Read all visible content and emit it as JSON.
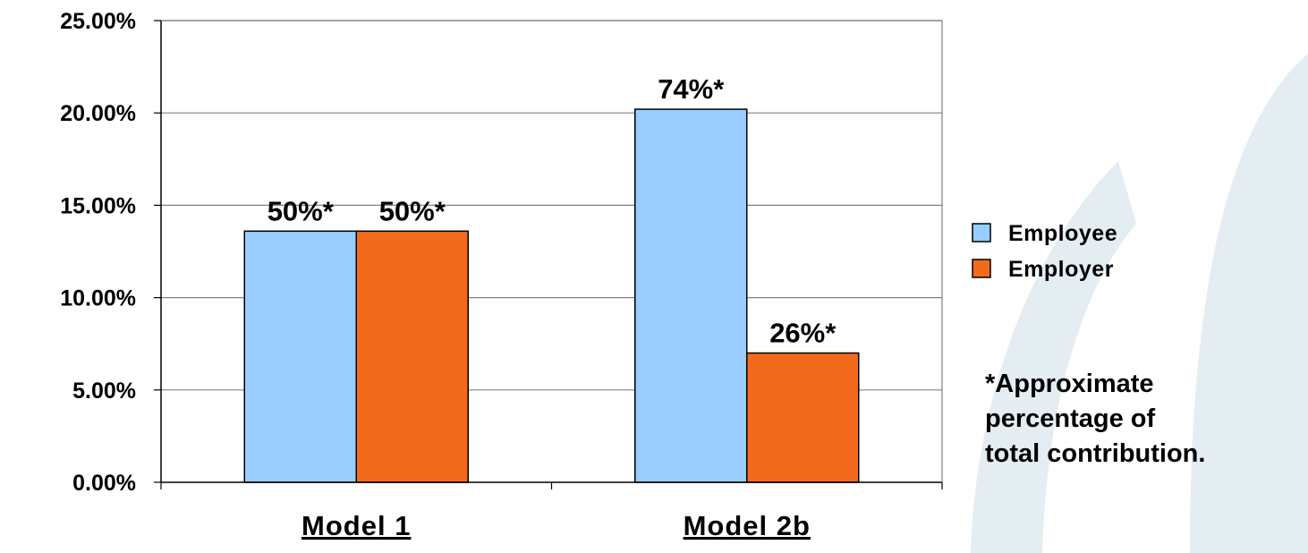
{
  "chart_data": {
    "type": "bar",
    "categories": [
      "Model 1",
      "Model 2b"
    ],
    "series": [
      {
        "name": "Employee",
        "values": [
          13.6,
          20.2
        ],
        "color": "#99CCFF"
      },
      {
        "name": "Employer",
        "values": [
          13.6,
          7.0
        ],
        "color": "#F26B1D"
      }
    ],
    "data_labels": [
      [
        "50%*",
        "74%*"
      ],
      [
        "50%*",
        "26%*"
      ]
    ],
    "ylim": [
      0,
      25
    ],
    "yticks": [
      0,
      5,
      10,
      15,
      20,
      25
    ],
    "ytick_labels": [
      "0.00%",
      "5.00%",
      "10.00%",
      "15.00%",
      "20.00%",
      "25.00%"
    ],
    "grid": true,
    "legend_position": "right",
    "title": "",
    "xlabel": "",
    "ylabel": ""
  },
  "note": {
    "lines": [
      "*Approximate",
      "percentage of",
      "total contribution."
    ]
  },
  "colors": {
    "axis": "#000000",
    "grid": "#808080",
    "background_swoosh": "#E4EDF1"
  }
}
